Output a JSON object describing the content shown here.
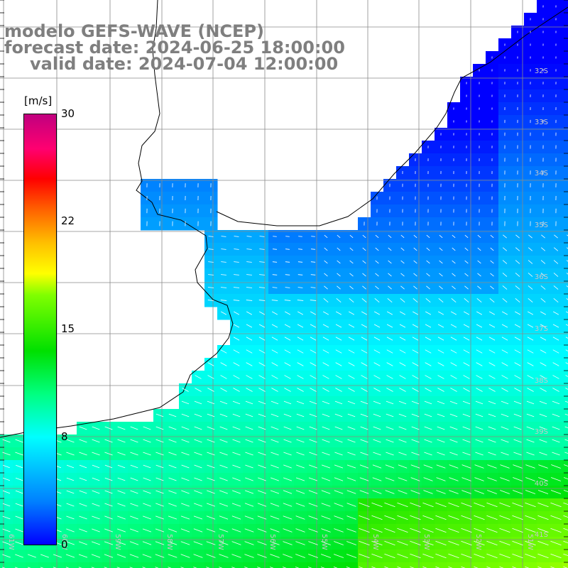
{
  "title": {
    "line1": "modelo GEFS-WAVE (NCEP)",
    "line2": "forecast date: 2024-06-25 18:00:00",
    "line3": "valid date: 2024-07-04 12:00:00"
  },
  "colorbar": {
    "unit": "[m/s]",
    "ticks": [
      "30",
      "22",
      "15",
      "8",
      "0"
    ],
    "tick_values": [
      30,
      22,
      15,
      8,
      0
    ],
    "colors": [
      "#0000ff",
      "#0080ff",
      "#00ffff",
      "#00ff80",
      "#00e000",
      "#80ff00",
      "#ffff00",
      "#ff6000",
      "#ff0000",
      "#c0007f"
    ]
  },
  "map": {
    "variable": "wind speed",
    "units": "m/s",
    "lat_labels": [
      "32S",
      "33S",
      "34S",
      "35S",
      "36S",
      "37S",
      "38S",
      "39S",
      "40S",
      "41S"
    ],
    "lon_labels": [
      "61W",
      "60W",
      "59W",
      "58W",
      "57W",
      "56W",
      "55W",
      "54W",
      "53W",
      "52W",
      "51W"
    ],
    "land_color": "#ffffff",
    "grid_color": "#7f7f7f",
    "coast_color": "#000000"
  }
}
